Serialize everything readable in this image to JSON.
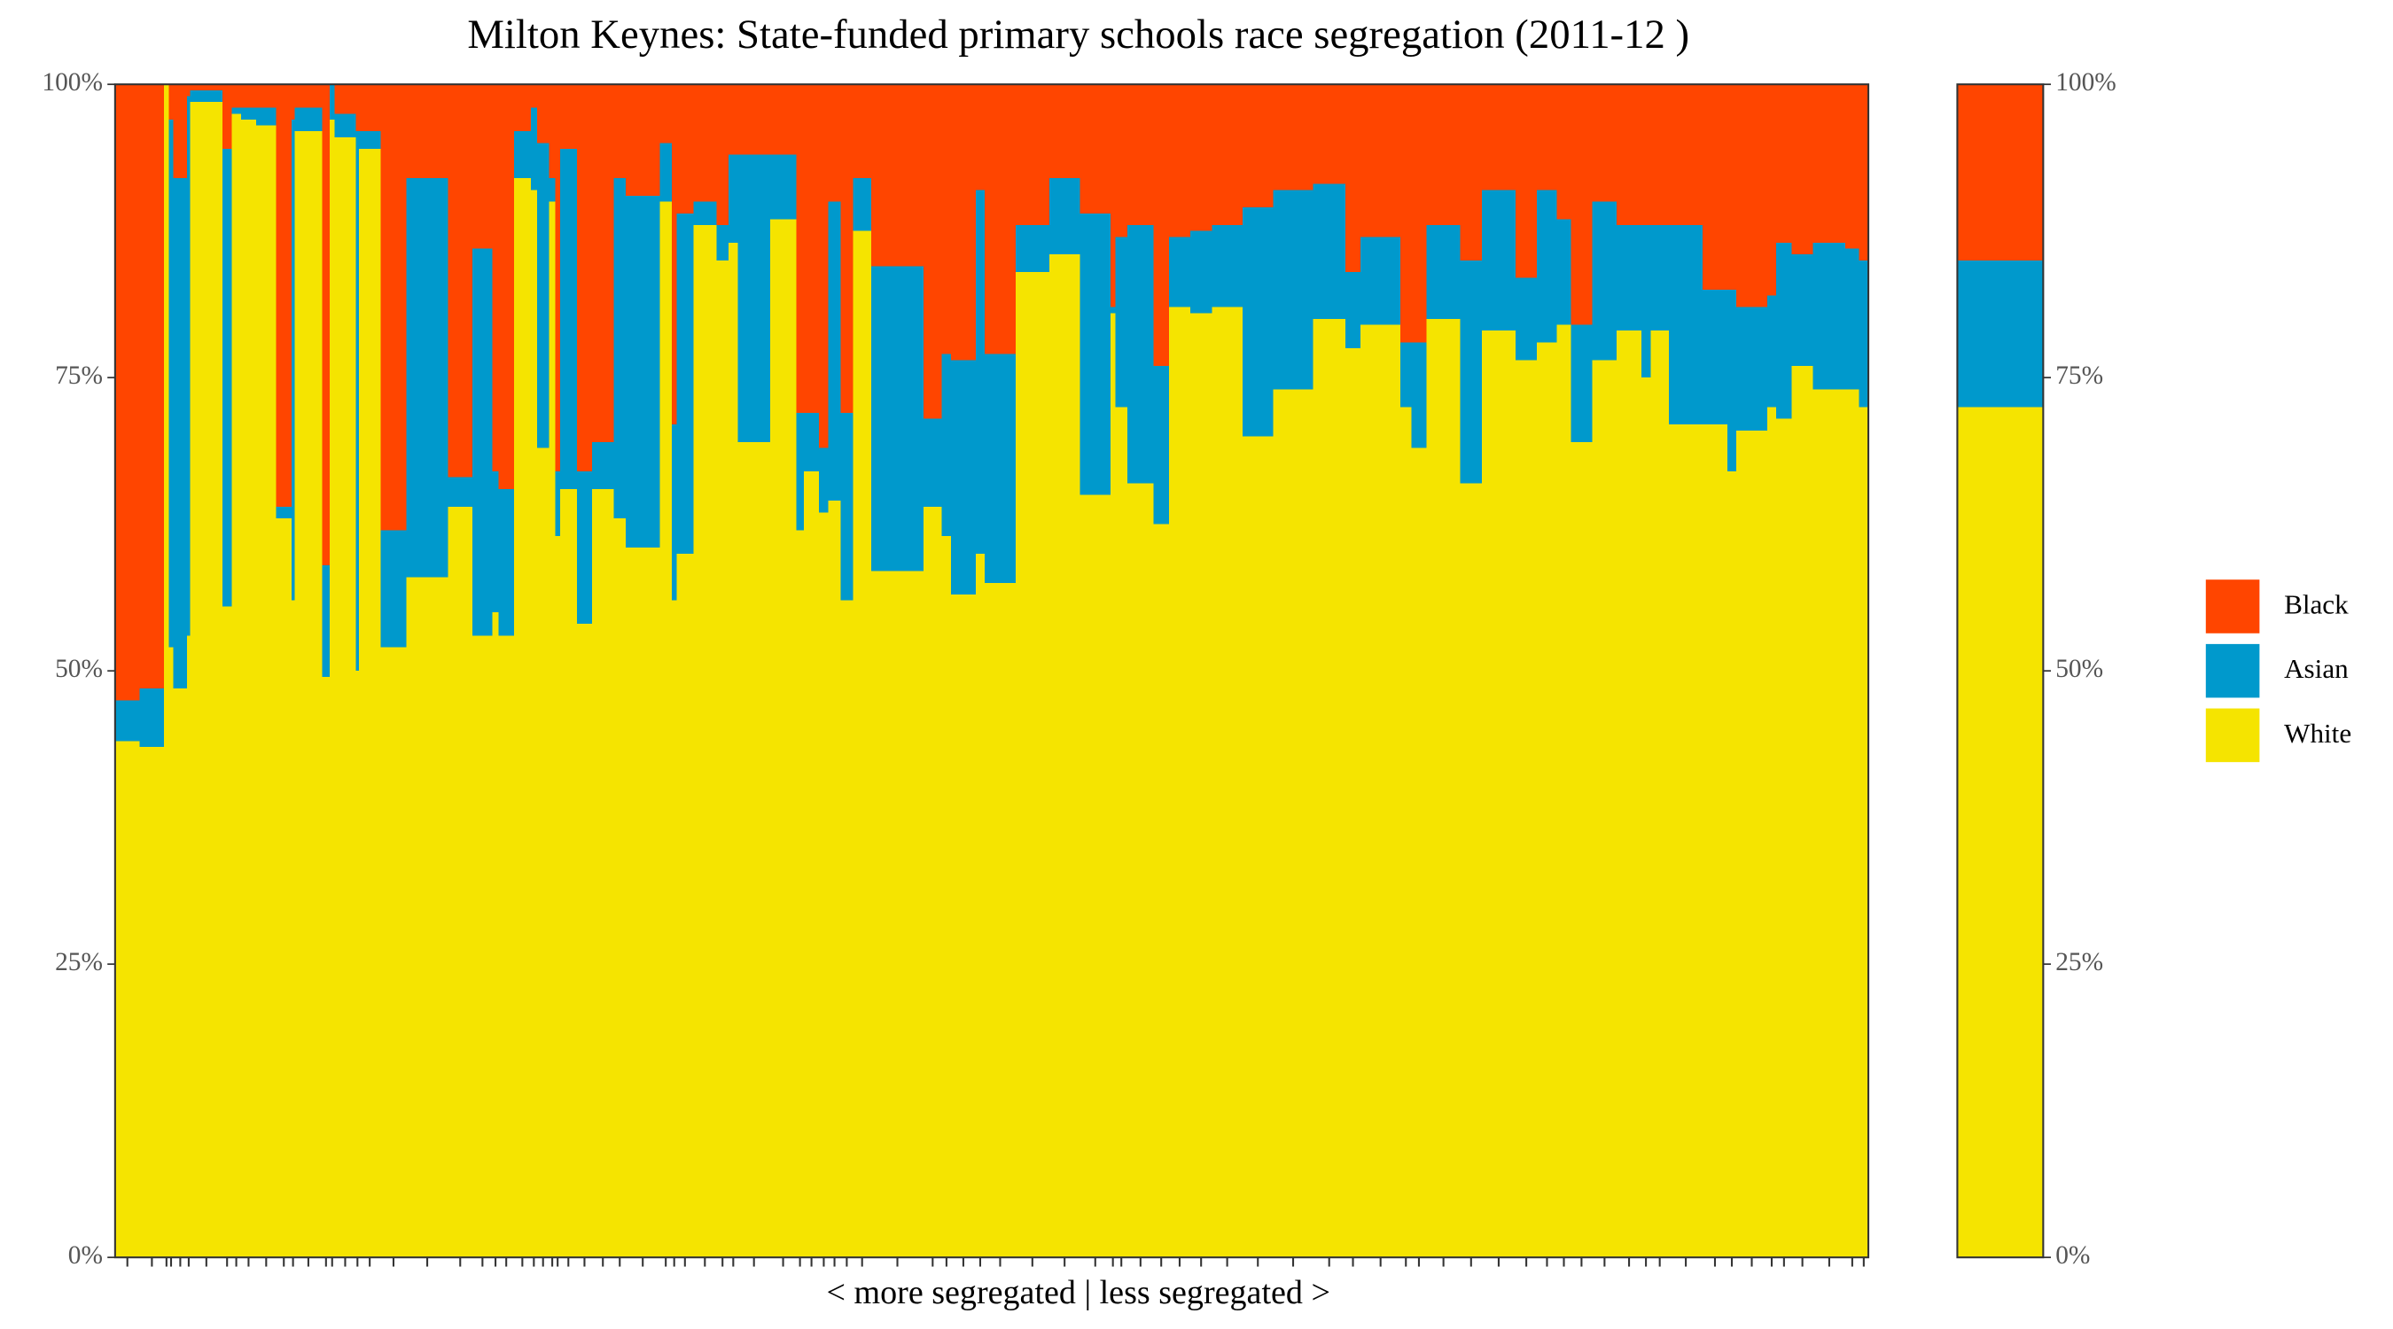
{
  "chart_data": {
    "type": "mekko",
    "title": "Milton Keynes: State-funded primary schools race segregation (2011-12 )",
    "x_label": "< more segregated | less segregated >",
    "categories": [
      null,
      null,
      null,
      null,
      null,
      null,
      null,
      null,
      null,
      null,
      null,
      null,
      null,
      null,
      null,
      null,
      null,
      null,
      null,
      null,
      null,
      null,
      null,
      null,
      null,
      null,
      null,
      null,
      null,
      null,
      null,
      null,
      null,
      null,
      null,
      null,
      null,
      null,
      null,
      null,
      null,
      null,
      null,
      null,
      null,
      null,
      null,
      null,
      null,
      null,
      null,
      null,
      null,
      null,
      null,
      null,
      null,
      null,
      null,
      null,
      null,
      null,
      null,
      null,
      null,
      null,
      null,
      null,
      null,
      null,
      null,
      null,
      null,
      null,
      null,
      null,
      null,
      null,
      null,
      null,
      null,
      null,
      null,
      null,
      null,
      null,
      null,
      null,
      null,
      null,
      null,
      null,
      null
    ],
    "widths": [
      16,
      16,
      3,
      3,
      9,
      2,
      21,
      6,
      6,
      10,
      13,
      10,
      2,
      18,
      5,
      3,
      14,
      2,
      14,
      17,
      27,
      16,
      13,
      4,
      10,
      11,
      4,
      8,
      4,
      3,
      11,
      10,
      14,
      8,
      22,
      8,
      3,
      11,
      15,
      8,
      6,
      21,
      17,
      5,
      10,
      6,
      8,
      8,
      12,
      34,
      12,
      6,
      16,
      6,
      20,
      22,
      20,
      20,
      3,
      8,
      17,
      10,
      14,
      14,
      20,
      20,
      26,
      21,
      10,
      26,
      7,
      10,
      22,
      14,
      22,
      14,
      13,
      9,
      14,
      16,
      16,
      6,
      12,
      22,
      16,
      6,
      20,
      6,
      10,
      14,
      21,
      9,
      6
    ],
    "series": [
      {
        "name": "White",
        "color": "#f5e400",
        "overall": 72.5,
        "values": [
          44,
          43.5,
          100,
          52,
          48.5,
          53,
          98.5,
          55.5,
          97.5,
          97,
          96.5,
          63,
          56,
          96,
          49.5,
          97,
          95.5,
          50,
          94.5,
          52,
          58,
          64,
          53,
          55,
          53,
          92,
          91,
          69,
          90,
          61.5,
          65.5,
          54,
          65.5,
          63,
          60.5,
          90,
          56,
          60,
          88,
          85,
          86.5,
          69.5,
          88.5,
          62,
          67,
          63.5,
          64.5,
          56,
          87.5,
          58.5,
          64,
          61.5,
          56.5,
          60,
          57.5,
          84,
          85.5,
          65,
          80.5,
          72.5,
          66,
          62.5,
          81,
          80.5,
          81,
          70,
          74,
          80,
          77.5,
          79.5,
          72.5,
          69,
          80,
          66,
          79,
          76.5,
          78,
          79.5,
          69.5,
          76.5,
          79,
          75,
          79,
          71,
          71,
          67,
          70.5,
          72.5,
          71.5,
          76,
          74,
          74,
          72.5
        ]
      },
      {
        "name": "Asian",
        "color": "#0099cc",
        "overall": 12.5,
        "values": [
          3.5,
          5,
          0,
          45,
          43.5,
          46,
          1,
          39,
          0.5,
          1,
          1.5,
          1,
          41,
          2,
          9.5,
          3,
          2,
          46,
          1.5,
          10,
          34,
          2.5,
          33,
          12,
          12.5,
          4,
          7,
          26,
          2,
          5.5,
          29,
          13,
          4,
          29,
          30,
          5,
          15,
          29,
          2,
          3,
          7.5,
          24.5,
          5.5,
          10,
          5,
          5.5,
          25.5,
          16,
          4.5,
          26,
          7.5,
          15.5,
          20,
          31,
          19.5,
          4,
          6.5,
          24,
          0.5,
          14.5,
          22,
          13.5,
          6,
          7,
          7,
          19.5,
          17,
          11.5,
          6.5,
          7.5,
          5.5,
          9,
          8,
          19,
          12,
          7,
          13,
          9,
          10,
          13.5,
          9,
          13,
          9,
          17,
          11.5,
          15.5,
          10.5,
          9.5,
          15,
          9.5,
          12.5,
          12,
          12.5
        ]
      },
      {
        "name": "Black",
        "color": "#ff4500",
        "overall": 15,
        "values": [
          52.5,
          51.5,
          0,
          3,
          8,
          1,
          0.5,
          5.5,
          2,
          2,
          2,
          36,
          3,
          2,
          41,
          0,
          2.5,
          4,
          4,
          38,
          8,
          33.5,
          14,
          33,
          34.5,
          4,
          2,
          5,
          8,
          33,
          5.5,
          33,
          30.5,
          8,
          9.5,
          5,
          29,
          11,
          10,
          12,
          6,
          6,
          6,
          28,
          28,
          31,
          10,
          28,
          8,
          15.5,
          28.5,
          23,
          23.5,
          9,
          23,
          12,
          8,
          11,
          19,
          13,
          12,
          24,
          13,
          12.5,
          12,
          10.5,
          9,
          8.5,
          16,
          13,
          22,
          22,
          12,
          15,
          9,
          16.5,
          9,
          11.5,
          20.5,
          10,
          12,
          12,
          12,
          12,
          17.5,
          17.5,
          19,
          18,
          13.5,
          14.5,
          13.5,
          14,
          15
        ]
      }
    ],
    "ylim": [
      0,
      100
    ],
    "yticks": [
      {
        "value": 0,
        "label": "0%"
      },
      {
        "value": 25,
        "label": "25%"
      },
      {
        "value": 50,
        "label": "50%"
      },
      {
        "value": 75,
        "label": "75%"
      },
      {
        "value": 100,
        "label": "100%"
      }
    ],
    "legend": "right"
  }
}
